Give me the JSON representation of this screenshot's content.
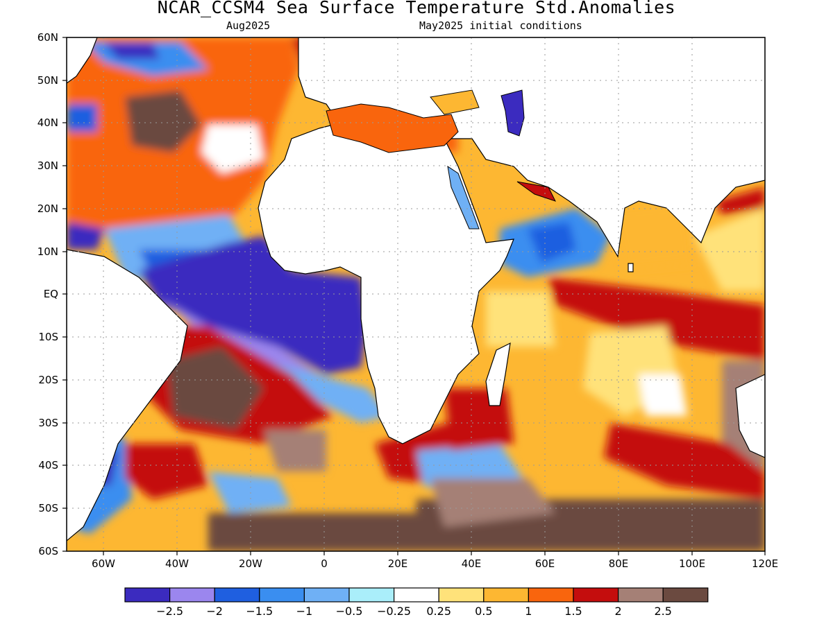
{
  "title": "NCAR_CCSM4 Sea Surface Temperature Std.Anomalies",
  "subtitle_left": "Aug2025",
  "subtitle_right": "May2025 initial conditions",
  "map": {
    "lon_range": [
      -70,
      120
    ],
    "lat_range": [
      -60,
      60
    ],
    "lat_labels": [
      "60N",
      "50N",
      "40N",
      "30N",
      "20N",
      "10N",
      "EQ",
      "10S",
      "20S",
      "30S",
      "40S",
      "50S",
      "60S"
    ],
    "lon_labels": [
      "60W",
      "40W",
      "20W",
      "0",
      "20E",
      "40E",
      "60E",
      "80E",
      "100E",
      "120E"
    ],
    "grid": true
  },
  "colorbar": {
    "colors": [
      "#3b2bbf",
      "#9b86ee",
      "#1f5fe0",
      "#3a8ef0",
      "#6fb0f5",
      "#aaeefa",
      "#ffffff",
      "#ffe27a",
      "#fdb732",
      "#f9650d",
      "#c40d0d",
      "#a58076",
      "#6b4a40"
    ],
    "labels": [
      "−2.5",
      "−2",
      "−1.5",
      "−1",
      "−0.5",
      "−0.25",
      "0.25",
      "0.5",
      "1",
      "1.5",
      "2",
      "2.5"
    ]
  }
}
